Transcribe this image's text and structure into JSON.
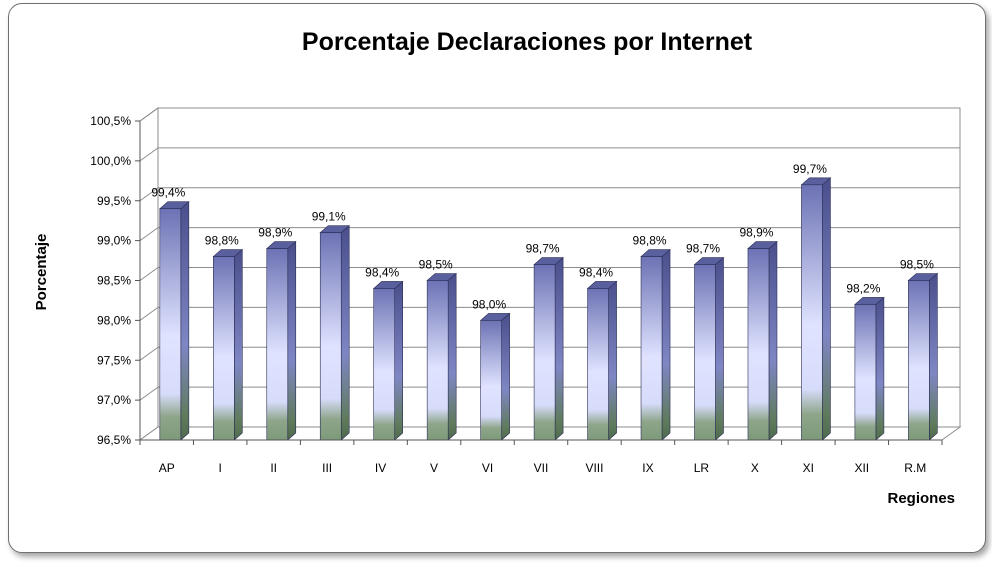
{
  "chart_data": {
    "type": "bar",
    "title": "Porcentaje Declaraciones por Internet",
    "xlabel": "Regiones",
    "ylabel": "Porcentaje",
    "categories": [
      "AP",
      "I",
      "II",
      "III",
      "IV",
      "V",
      "VI",
      "VII",
      "VIII",
      "IX",
      "LR",
      "X",
      "XI",
      "XII",
      "R.M"
    ],
    "values": [
      99.4,
      98.8,
      98.9,
      99.1,
      98.4,
      98.5,
      98.0,
      98.7,
      98.4,
      98.8,
      98.7,
      98.9,
      99.7,
      98.2,
      98.5
    ],
    "data_labels": [
      "99,4%",
      "98,8%",
      "98,9%",
      "99,1%",
      "98,4%",
      "98,5%",
      "98,0%",
      "98,7%",
      "98,4%",
      "98,8%",
      "98,7%",
      "98,9%",
      "99,7%",
      "98,2%",
      "98,5%"
    ],
    "yticks": [
      96.5,
      97.0,
      97.5,
      98.0,
      98.5,
      99.0,
      99.5,
      100.0,
      100.5
    ],
    "ytick_labels": [
      "96,5%",
      "97,0%",
      "97,5%",
      "98,0%",
      "98,5%",
      "99,0%",
      "99,5%",
      "100,0%",
      "100,5%"
    ],
    "ylim": [
      96.5,
      100.5
    ],
    "grid": true,
    "legend": "none",
    "colors": {
      "bar_top": "#6c72b4",
      "bar_mid": "#dfe3ff",
      "bar_bottom": "#7d9a7a",
      "bar_side": "#4d5290",
      "bar_cap": "#5a5f9e"
    }
  }
}
